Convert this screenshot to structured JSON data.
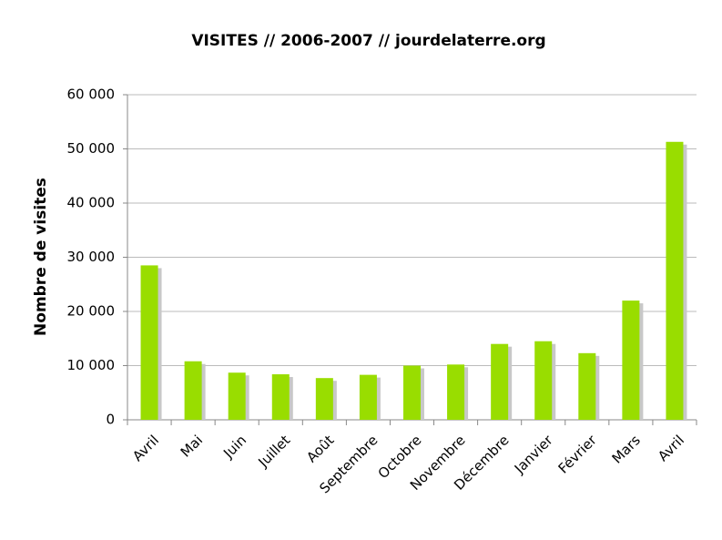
{
  "chart_data": {
    "type": "bar",
    "title": "VISITES // 2006-2007 // jourdelaterre.org",
    "y_label": "Nombre de visites",
    "categories": [
      "Avril",
      "Mai",
      "Juin",
      "Juillet",
      "Août",
      "Septembre",
      "Octobre",
      "Novembre",
      "Décembre",
      "Janvier",
      "Février",
      "Mars",
      "Avril"
    ],
    "values": [
      28500,
      10800,
      8700,
      8400,
      7700,
      8300,
      10000,
      10200,
      14000,
      14500,
      12300,
      22000,
      51300
    ],
    "color": "#99dd00",
    "ylim": [
      0,
      60000
    ],
    "yticks": [
      0,
      {
        "value": 10000,
        "label": "10 000"
      },
      {
        "value": 20000,
        "label": "20 000"
      },
      {
        "value": 30000,
        "label": "30 000"
      },
      {
        "value": 40000,
        "label": "40 000"
      },
      {
        "value": 50000,
        "label": "50 000"
      },
      {
        "value": 60000,
        "label": "60 000"
      }
    ],
    "grid": true
  }
}
